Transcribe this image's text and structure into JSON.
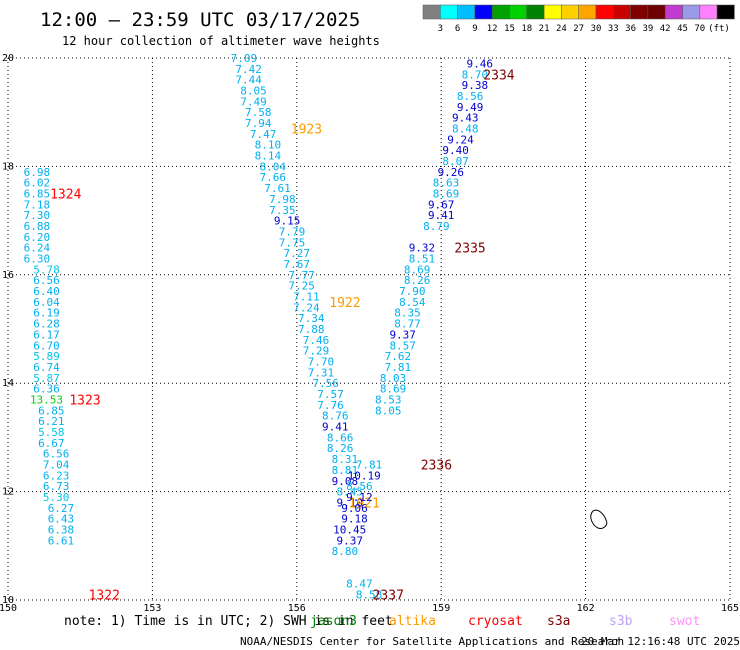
{
  "title": "12:00 – 23:59 UTC 03/17/2025",
  "subtitle": "12 hour collection of altimeter wave heights",
  "legend": {
    "unit": "(ft)",
    "colors": [
      "#808080",
      "#00ffff",
      "#00bfff",
      "#0000ff",
      "#00a000",
      "#00d000",
      "#008000",
      "#ffff00",
      "#ffd000",
      "#ffa500",
      "#ff0000",
      "#c80000",
      "#800000",
      "#6e0000",
      "#c03cd0",
      "#9a9ae8",
      "#ff80ff",
      "#000000"
    ],
    "labels": [
      "3",
      "6",
      "9",
      "12",
      "15",
      "18",
      "21",
      "24",
      "27",
      "30",
      "33",
      "36",
      "39",
      "42",
      "45",
      "70"
    ]
  },
  "chart_data": {
    "type": "scatter",
    "xlim": [
      150,
      165
    ],
    "ylim": [
      10,
      20
    ],
    "x_ticks": [
      "150",
      "153",
      "156",
      "159",
      "162",
      "165"
    ],
    "y_ticks": [
      "10",
      "12",
      "14",
      "16",
      "18",
      "20"
    ],
    "grid": true,
    "tracks": [
      {
        "pass": "1324",
        "pass_pos": [
          151.2,
          17.5
        ],
        "color": "#ff0000",
        "points": [
          {
            "x": 150.6,
            "y": 17.9,
            "v": "6.98"
          },
          {
            "x": 150.6,
            "y": 17.7,
            "v": "6.02"
          },
          {
            "x": 150.6,
            "y": 17.5,
            "v": "6.85"
          },
          {
            "x": 150.6,
            "y": 17.3,
            "v": "7.18"
          },
          {
            "x": 150.6,
            "y": 17.1,
            "v": "7.30"
          },
          {
            "x": 150.6,
            "y": 16.9,
            "v": "6.88"
          },
          {
            "x": 150.6,
            "y": 16.7,
            "v": "6.20"
          },
          {
            "x": 150.6,
            "y": 16.5,
            "v": "6.24"
          },
          {
            "x": 150.6,
            "y": 16.3,
            "v": "6.30"
          }
        ]
      },
      {
        "pass": "1323",
        "pass_pos": [
          151.6,
          13.7
        ],
        "color": "#ff0000",
        "points": [
          {
            "x": 150.8,
            "y": 16.1,
            "v": "5.78"
          },
          {
            "x": 150.8,
            "y": 15.9,
            "v": "6.56"
          },
          {
            "x": 150.8,
            "y": 15.7,
            "v": "6.40"
          },
          {
            "x": 150.8,
            "y": 15.5,
            "v": "6.04"
          },
          {
            "x": 150.8,
            "y": 15.3,
            "v": "6.19"
          },
          {
            "x": 150.8,
            "y": 15.1,
            "v": "6.28"
          },
          {
            "x": 150.8,
            "y": 14.9,
            "v": "6.17"
          },
          {
            "x": 150.8,
            "y": 14.7,
            "v": "6.70"
          },
          {
            "x": 150.8,
            "y": 14.5,
            "v": "5.89"
          },
          {
            "x": 150.8,
            "y": 14.3,
            "v": "6.74"
          },
          {
            "x": 150.8,
            "y": 14.1,
            "v": "5.87"
          },
          {
            "x": 150.8,
            "y": 13.9,
            "v": "6.36"
          },
          {
            "x": 150.8,
            "y": 13.7,
            "v": "13.53"
          },
          {
            "x": 150.9,
            "y": 13.5,
            "v": "6.85"
          },
          {
            "x": 150.9,
            "y": 13.3,
            "v": "6.21"
          }
        ]
      },
      {
        "pass": "1322",
        "pass_pos": [
          152.0,
          10.1
        ],
        "color": "#ff0000",
        "points": [
          {
            "x": 150.9,
            "y": 13.1,
            "v": "5.58"
          },
          {
            "x": 150.9,
            "y": 12.9,
            "v": "6.67"
          },
          {
            "x": 151.0,
            "y": 12.7,
            "v": "6.56"
          },
          {
            "x": 151.0,
            "y": 12.5,
            "v": "7.04"
          },
          {
            "x": 151.0,
            "y": 12.3,
            "v": "6.23"
          },
          {
            "x": 151.0,
            "y": 12.1,
            "v": "6.73"
          },
          {
            "x": 151.0,
            "y": 11.9,
            "v": "5.30"
          },
          {
            "x": 151.1,
            "y": 11.7,
            "v": "6.27"
          },
          {
            "x": 151.1,
            "y": 11.5,
            "v": "6.43"
          },
          {
            "x": 151.1,
            "y": 11.3,
            "v": "6.38"
          },
          {
            "x": 151.1,
            "y": 11.1,
            "v": "6.61"
          }
        ]
      },
      {
        "pass": "1923",
        "pass_pos": [
          156.2,
          18.7
        ],
        "color": "#ff9900",
        "points": [
          {
            "x": 154.9,
            "y": 20.0,
            "v": "7.09"
          },
          {
            "x": 155.0,
            "y": 19.8,
            "v": "7.42"
          },
          {
            "x": 155.0,
            "y": 19.6,
            "v": "7.44"
          },
          {
            "x": 155.1,
            "y": 19.4,
            "v": "8.05"
          },
          {
            "x": 155.1,
            "y": 19.2,
            "v": "7.49"
          },
          {
            "x": 155.2,
            "y": 19.0,
            "v": "7.58"
          },
          {
            "x": 155.2,
            "y": 18.8,
            "v": "7.94"
          },
          {
            "x": 155.3,
            "y": 18.6,
            "v": "7.47"
          },
          {
            "x": 155.4,
            "y": 18.4,
            "v": "8.10"
          },
          {
            "x": 155.4,
            "y": 18.2,
            "v": "8.14"
          },
          {
            "x": 155.5,
            "y": 18.0,
            "v": "8.04"
          },
          {
            "x": 155.5,
            "y": 17.8,
            "v": "7.66"
          },
          {
            "x": 155.6,
            "y": 17.6,
            "v": "7.61"
          },
          {
            "x": 155.7,
            "y": 17.4,
            "v": "7.98"
          },
          {
            "x": 155.7,
            "y": 17.2,
            "v": "7.35"
          },
          {
            "x": 155.8,
            "y": 17.0,
            "v": "9.15"
          }
        ]
      },
      {
        "pass": "1922",
        "pass_pos": [
          157.0,
          15.5
        ],
        "color": "#ff9900",
        "points": [
          {
            "x": 155.9,
            "y": 16.8,
            "v": "7.79"
          },
          {
            "x": 155.9,
            "y": 16.6,
            "v": "7.75"
          },
          {
            "x": 156.0,
            "y": 16.4,
            "v": "7.27"
          },
          {
            "x": 156.0,
            "y": 16.2,
            "v": "7.67"
          },
          {
            "x": 156.1,
            "y": 16.0,
            "v": "7.77"
          },
          {
            "x": 156.1,
            "y": 15.8,
            "v": "7.25"
          },
          {
            "x": 156.2,
            "y": 15.6,
            "v": "7.11"
          },
          {
            "x": 156.2,
            "y": 15.4,
            "v": "7.24"
          },
          {
            "x": 156.3,
            "y": 15.2,
            "v": "7.34"
          },
          {
            "x": 156.3,
            "y": 15.0,
            "v": "7.88"
          },
          {
            "x": 156.4,
            "y": 14.8,
            "v": "7.46"
          },
          {
            "x": 156.4,
            "y": 14.6,
            "v": "7.29"
          },
          {
            "x": 156.5,
            "y": 14.4,
            "v": "7.70"
          },
          {
            "x": 156.5,
            "y": 14.2,
            "v": "7.31"
          },
          {
            "x": 156.6,
            "y": 14.0,
            "v": "7.56"
          }
        ]
      },
      {
        "pass": "1921",
        "pass_pos": [
          157.4,
          11.8
        ],
        "color": "#ff9900",
        "points": [
          {
            "x": 156.7,
            "y": 13.8,
            "v": "7.57"
          },
          {
            "x": 156.7,
            "y": 13.6,
            "v": "7.76"
          },
          {
            "x": 156.8,
            "y": 13.4,
            "v": "8.76"
          },
          {
            "x": 156.8,
            "y": 13.2,
            "v": "9.41"
          },
          {
            "x": 156.9,
            "y": 13.0,
            "v": "8.66"
          },
          {
            "x": 156.9,
            "y": 12.8,
            "v": "8.26"
          },
          {
            "x": 157.0,
            "y": 12.6,
            "v": "8.31"
          },
          {
            "x": 157.0,
            "y": 12.4,
            "v": "8.81"
          },
          {
            "x": 157.0,
            "y": 12.2,
            "v": "9.08"
          },
          {
            "x": 157.1,
            "y": 12.0,
            "v": "8.45"
          },
          {
            "x": 157.1,
            "y": 11.8,
            "v": "9.10"
          }
        ]
      },
      {
        "pass": "2337",
        "pass_pos": [
          157.9,
          10.1
        ],
        "color": "#800000",
        "points": [
          {
            "x": 157.3,
            "y": 10.3,
            "v": "8.47"
          },
          {
            "x": 157.5,
            "y": 10.1,
            "v": "8.58"
          }
        ]
      },
      {
        "pass": "2336",
        "pass_pos": [
          158.9,
          12.5
        ],
        "color": "#800000",
        "points": [
          {
            "x": 157.5,
            "y": 12.5,
            "v": "7.81"
          },
          {
            "x": 157.4,
            "y": 12.3,
            "v": "10.19"
          },
          {
            "x": 157.3,
            "y": 12.1,
            "v": "8.56"
          },
          {
            "x": 157.3,
            "y": 11.9,
            "v": "9.12"
          },
          {
            "x": 157.2,
            "y": 11.7,
            "v": "9.06"
          },
          {
            "x": 157.2,
            "y": 11.5,
            "v": "9.18"
          },
          {
            "x": 157.1,
            "y": 11.3,
            "v": "10.45"
          },
          {
            "x": 157.1,
            "y": 11.1,
            "v": "9.37"
          },
          {
            "x": 157.0,
            "y": 10.9,
            "v": "8.80"
          }
        ]
      },
      {
        "pass": "2335",
        "pass_pos": [
          159.6,
          16.5
        ],
        "color": "#800000",
        "points": [
          {
            "x": 158.6,
            "y": 16.5,
            "v": "9.32"
          },
          {
            "x": 158.6,
            "y": 16.3,
            "v": "8.51"
          },
          {
            "x": 158.5,
            "y": 16.1,
            "v": "8.69"
          },
          {
            "x": 158.5,
            "y": 15.9,
            "v": "8.26"
          },
          {
            "x": 158.4,
            "y": 15.7,
            "v": "7.90"
          },
          {
            "x": 158.4,
            "y": 15.5,
            "v": "8.54"
          },
          {
            "x": 158.3,
            "y": 15.3,
            "v": "8.35"
          },
          {
            "x": 158.3,
            "y": 15.1,
            "v": "8.77"
          },
          {
            "x": 158.2,
            "y": 14.9,
            "v": "9.37"
          },
          {
            "x": 158.2,
            "y": 14.7,
            "v": "8.57"
          },
          {
            "x": 158.1,
            "y": 14.5,
            "v": "7.62"
          },
          {
            "x": 158.1,
            "y": 14.3,
            "v": "7.81"
          },
          {
            "x": 158.0,
            "y": 14.1,
            "v": "8.03"
          },
          {
            "x": 158.0,
            "y": 13.9,
            "v": "8.69"
          },
          {
            "x": 157.9,
            "y": 13.7,
            "v": "8.53"
          },
          {
            "x": 157.9,
            "y": 13.5,
            "v": "8.05"
          }
        ]
      },
      {
        "pass": "2334",
        "pass_pos": [
          160.2,
          19.7
        ],
        "color": "#800000",
        "points": [
          {
            "x": 159.8,
            "y": 19.9,
            "v": "9.46"
          },
          {
            "x": 159.7,
            "y": 19.7,
            "v": "8.70"
          },
          {
            "x": 159.7,
            "y": 19.5,
            "v": "9.38"
          },
          {
            "x": 159.6,
            "y": 19.3,
            "v": "8.56"
          },
          {
            "x": 159.6,
            "y": 19.1,
            "v": "9.49"
          },
          {
            "x": 159.5,
            "y": 18.9,
            "v": "9.43"
          },
          {
            "x": 159.5,
            "y": 18.7,
            "v": "8.48"
          },
          {
            "x": 159.4,
            "y": 18.5,
            "v": "9.24"
          },
          {
            "x": 159.3,
            "y": 18.3,
            "v": "9.40"
          },
          {
            "x": 159.3,
            "y": 18.1,
            "v": "8.07"
          },
          {
            "x": 159.2,
            "y": 17.9,
            "v": "9.26"
          },
          {
            "x": 159.1,
            "y": 17.7,
            "v": "8.63"
          },
          {
            "x": 159.1,
            "y": 17.5,
            "v": "8.69"
          },
          {
            "x": 159.0,
            "y": 17.3,
            "v": "9.67"
          },
          {
            "x": 159.0,
            "y": 17.1,
            "v": "9.41"
          },
          {
            "x": 158.9,
            "y": 16.9,
            "v": "8.79"
          }
        ]
      }
    ]
  },
  "note": "note:  1) Time is in UTC; 2) SWH is in feet",
  "missions": [
    {
      "name": "jason3",
      "color": "#008000"
    },
    {
      "name": "altika",
      "color": "#ff9900"
    },
    {
      "name": "cryosat",
      "color": "#ff0000"
    },
    {
      "name": "s3a",
      "color": "#800000"
    },
    {
      "name": "s3b",
      "color": "#c0a0f0"
    },
    {
      "name": "swot",
      "color": "#ff90ff"
    }
  ],
  "footer_left": "NOAA/NESDIS Center for Satellite Applications and Research",
  "footer_right": "20 Mar 12:16:48 UTC 2025"
}
